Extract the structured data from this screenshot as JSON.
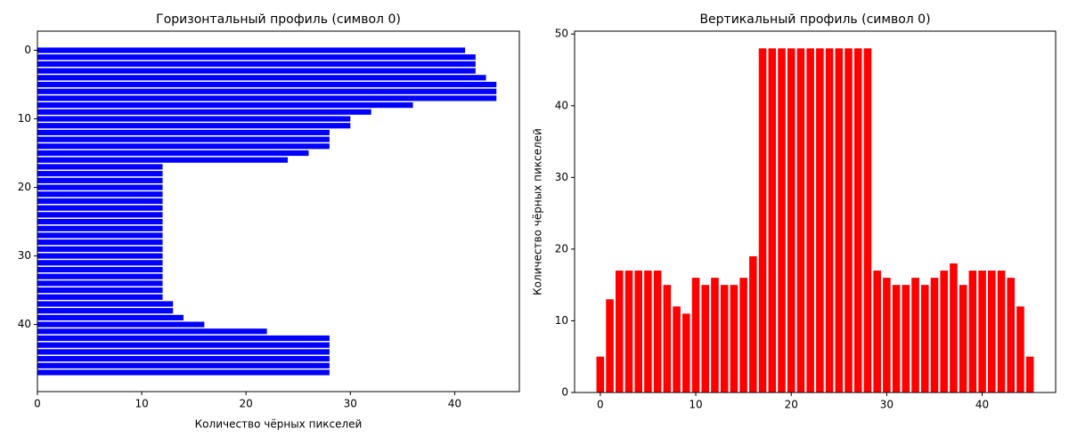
{
  "chart_data": [
    {
      "type": "bar",
      "orientation": "horizontal",
      "title": "Горизонтальный профиль (символ 0)",
      "xlabel": "Количество чёрных пикселей",
      "color": "#0000ff",
      "y": [
        0,
        1,
        2,
        3,
        4,
        5,
        6,
        7,
        8,
        9,
        10,
        11,
        12,
        13,
        14,
        15,
        16,
        17,
        18,
        19,
        20,
        21,
        22,
        23,
        24,
        25,
        26,
        27,
        28,
        29,
        30,
        31,
        32,
        33,
        34,
        35,
        36,
        37,
        38,
        39,
        40,
        41,
        42,
        43,
        44,
        45,
        46,
        47
      ],
      "values": [
        41,
        42,
        42,
        42,
        43,
        44,
        44,
        44,
        36,
        32,
        30,
        30,
        28,
        28,
        28,
        26,
        24,
        12,
        12,
        12,
        12,
        12,
        12,
        12,
        12,
        12,
        12,
        12,
        12,
        12,
        12,
        12,
        12,
        12,
        12,
        12,
        12,
        13,
        13,
        14,
        16,
        22,
        28,
        28,
        28,
        28,
        28,
        28
      ],
      "xlim": [
        0,
        46.2
      ],
      "ylim": [
        49.79,
        -2.79
      ],
      "xticks": [
        0,
        10,
        20,
        30,
        40
      ],
      "yticks": [
        0,
        10,
        20,
        30,
        40
      ]
    },
    {
      "type": "bar",
      "orientation": "vertical",
      "title": "Вертикальный профиль (символ 0)",
      "ylabel": "Количество чёрных пикселей",
      "color": "#ff0000",
      "x": [
        0,
        1,
        2,
        3,
        4,
        5,
        6,
        7,
        8,
        9,
        10,
        11,
        12,
        13,
        14,
        15,
        16,
        17,
        18,
        19,
        20,
        21,
        22,
        23,
        24,
        25,
        26,
        27,
        28,
        29,
        30,
        31,
        32,
        33,
        34,
        35,
        36,
        37,
        38,
        39,
        40,
        41,
        42,
        43,
        44,
        45
      ],
      "values": [
        5,
        13,
        17,
        17,
        17,
        17,
        17,
        15,
        12,
        11,
        16,
        15,
        16,
        15,
        15,
        16,
        19,
        48,
        48,
        48,
        48,
        48,
        48,
        48,
        48,
        48,
        48,
        48,
        48,
        17,
        16,
        15,
        15,
        16,
        15,
        16,
        17,
        18,
        15,
        17,
        17,
        17,
        17,
        16,
        12,
        5
      ],
      "xlim": [
        -2.69,
        47.69
      ],
      "ylim": [
        0,
        50.4
      ],
      "xticks": [
        0,
        10,
        20,
        30,
        40
      ],
      "yticks": [
        0,
        10,
        20,
        30,
        40,
        50
      ]
    }
  ]
}
